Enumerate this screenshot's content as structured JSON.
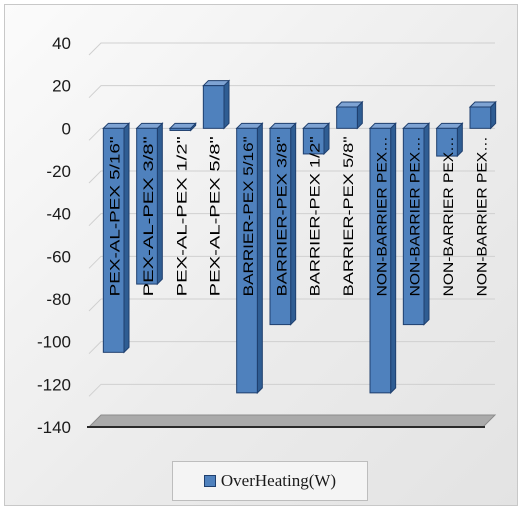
{
  "chart_data": {
    "type": "bar",
    "categories": [
      "PEX-AL-PEX 5/16\"",
      "PEX-AL-PEX 3/8\"",
      "PEX-AL-PEX 1/2\"",
      "PEX-AL-PEX 5/8\"",
      "BARRIER-PEX 5/16\"",
      "BARRIER-PEX 3/8\"",
      "BARRIER-PEX 1/2\"",
      "BARRIER-PEX 5/8\"",
      "NON-BARRIER PEX…",
      "NON-BARRIER PEX…",
      "NON-BARRIER PEX…",
      "NON-BARRIER PEX…"
    ],
    "series": [
      {
        "name": "OverHeating(W)",
        "values": [
          -105,
          -73,
          -1,
          20,
          -124,
          -92,
          -12,
          10,
          -124,
          -92,
          -13,
          10
        ]
      }
    ],
    "yticks": [
      40,
      20,
      0,
      -20,
      -40,
      -60,
      -80,
      -100,
      -120,
      -140
    ],
    "ylim": [
      -140,
      40
    ],
    "grid": true,
    "legend_position": "bottom",
    "colors": {
      "bar_fill": "#4f81bd",
      "bar_edge": "#1f3f6e",
      "grid": "#d0d0d0",
      "floor": "#aaaaaa"
    }
  }
}
